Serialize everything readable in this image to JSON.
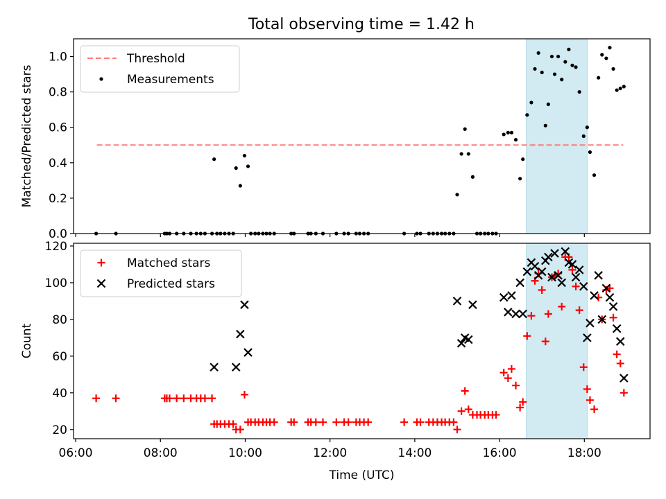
{
  "title": "Total observing time = 1.42 h",
  "colors": {
    "threshold": "#ff7b7b",
    "measurements": "#000000",
    "matched": "#ff0000",
    "predicted": "#000000",
    "shade": "#add8e6"
  },
  "chart_data": [
    {
      "type": "scatter",
      "ylabel": "Matched/Predicted stars",
      "xlim_hours": [
        5.95,
        19.55
      ],
      "ylim": [
        0,
        1.1
      ],
      "yticks": [
        0.0,
        0.2,
        0.4,
        0.6,
        0.8,
        1.0
      ],
      "ytick_labels": [
        "0.0",
        "0.2",
        "0.4",
        "0.6",
        "0.8",
        "1.0"
      ],
      "legend": {
        "position": "top-left",
        "entries": [
          "Threshold",
          "Measurements"
        ]
      },
      "threshold": {
        "name": "Threshold",
        "value": 0.5,
        "x_range": [
          "06:30",
          "18:55"
        ]
      },
      "shaded_interval": [
        "16:38",
        "18:04"
      ],
      "series": [
        {
          "name": "Measurements",
          "marker": "dot",
          "points": [
            [
              "06:29",
              0.0
            ],
            [
              "06:57",
              0.0
            ],
            [
              "08:06",
              0.0
            ],
            [
              "08:09",
              0.0
            ],
            [
              "08:13",
              0.0
            ],
            [
              "08:23",
              0.0
            ],
            [
              "08:33",
              0.0
            ],
            [
              "08:43",
              0.0
            ],
            [
              "08:51",
              0.0
            ],
            [
              "08:57",
              0.0
            ],
            [
              "09:03",
              0.0
            ],
            [
              "09:13",
              0.0
            ],
            [
              "09:16",
              0.42
            ],
            [
              "09:20",
              0.0
            ],
            [
              "09:25",
              0.0
            ],
            [
              "09:31",
              0.0
            ],
            [
              "09:37",
              0.0
            ],
            [
              "09:43",
              0.0
            ],
            [
              "09:47",
              0.37
            ],
            [
              "09:53",
              0.27
            ],
            [
              "09:59",
              0.44
            ],
            [
              "10:04",
              0.38
            ],
            [
              "10:08",
              0.0
            ],
            [
              "10:14",
              0.0
            ],
            [
              "10:19",
              0.0
            ],
            [
              "10:25",
              0.0
            ],
            [
              "10:30",
              0.0
            ],
            [
              "10:35",
              0.0
            ],
            [
              "10:41",
              0.0
            ],
            [
              "11:05",
              0.0
            ],
            [
              "11:09",
              0.0
            ],
            [
              "11:29",
              0.0
            ],
            [
              "11:33",
              0.0
            ],
            [
              "11:40",
              0.0
            ],
            [
              "11:50",
              0.0
            ],
            [
              "12:09",
              0.0
            ],
            [
              "12:20",
              0.0
            ],
            [
              "12:26",
              0.0
            ],
            [
              "12:37",
              0.0
            ],
            [
              "12:42",
              0.0
            ],
            [
              "12:48",
              0.0
            ],
            [
              "12:54",
              0.0
            ],
            [
              "13:45",
              0.0
            ],
            [
              "14:03",
              0.0
            ],
            [
              "14:08",
              0.0
            ],
            [
              "14:20",
              0.0
            ],
            [
              "14:26",
              0.0
            ],
            [
              "14:32",
              0.0
            ],
            [
              "14:38",
              0.0
            ],
            [
              "14:43",
              0.0
            ],
            [
              "14:49",
              0.0
            ],
            [
              "14:55",
              0.0
            ],
            [
              "15:00",
              0.22
            ],
            [
              "15:06",
              0.45
            ],
            [
              "15:11",
              0.59
            ],
            [
              "15:16",
              0.45
            ],
            [
              "15:22",
              0.32
            ],
            [
              "15:28",
              0.0
            ],
            [
              "15:33",
              0.0
            ],
            [
              "15:39",
              0.0
            ],
            [
              "15:44",
              0.0
            ],
            [
              "15:50",
              0.0
            ],
            [
              "15:55",
              0.0
            ],
            [
              "16:06",
              0.56
            ],
            [
              "16:12",
              0.57
            ],
            [
              "16:17",
              0.57
            ],
            [
              "16:23",
              0.53
            ],
            [
              "16:29",
              0.31
            ],
            [
              "16:33",
              0.42
            ],
            [
              "16:39",
              0.67
            ],
            [
              "16:45",
              0.74
            ],
            [
              "16:50",
              0.93
            ],
            [
              "16:55",
              1.02
            ],
            [
              "17:00",
              0.91
            ],
            [
              "17:05",
              0.61
            ],
            [
              "17:09",
              0.73
            ],
            [
              "17:14",
              1.0
            ],
            [
              "17:18",
              0.9
            ],
            [
              "17:23",
              1.0
            ],
            [
              "17:28",
              0.87
            ],
            [
              "17:33",
              0.97
            ],
            [
              "17:38",
              1.04
            ],
            [
              "17:43",
              0.95
            ],
            [
              "17:48",
              0.94
            ],
            [
              "17:53",
              0.8
            ],
            [
              "17:59",
              0.55
            ],
            [
              "18:04",
              0.6
            ],
            [
              "18:08",
              0.46
            ],
            [
              "18:14",
              0.33
            ],
            [
              "18:20",
              0.88
            ],
            [
              "18:25",
              1.01
            ],
            [
              "18:31",
              0.99
            ],
            [
              "18:36",
              1.05
            ],
            [
              "18:41",
              0.93
            ],
            [
              "18:46",
              0.81
            ],
            [
              "18:51",
              0.82
            ],
            [
              "18:56",
              0.83
            ]
          ]
        }
      ]
    },
    {
      "type": "scatter",
      "xlabel": "Time (UTC)",
      "ylabel": "Count",
      "xlim_hours": [
        5.95,
        19.55
      ],
      "ylim": [
        15,
        121.5
      ],
      "yticks": [
        20,
        40,
        60,
        80,
        100,
        120
      ],
      "ytick_labels": [
        "20",
        "40",
        "60",
        "80",
        "100",
        "120"
      ],
      "xticks": [
        "06:00",
        "08:00",
        "10:00",
        "12:00",
        "14:00",
        "16:00",
        "18:00"
      ],
      "legend": {
        "position": "top-left",
        "entries": [
          "Matched stars",
          "Predicted stars"
        ]
      },
      "shaded_interval": [
        "16:38",
        "18:04"
      ],
      "series": [
        {
          "name": "Matched stars",
          "marker": "plus",
          "points": [
            [
              "06:29",
              37
            ],
            [
              "06:57",
              37
            ],
            [
              "08:06",
              37
            ],
            [
              "08:09",
              37
            ],
            [
              "08:13",
              37
            ],
            [
              "08:23",
              37
            ],
            [
              "08:33",
              37
            ],
            [
              "08:43",
              37
            ],
            [
              "08:51",
              37
            ],
            [
              "08:57",
              37
            ],
            [
              "09:03",
              37
            ],
            [
              "09:13",
              37
            ],
            [
              "09:16",
              23
            ],
            [
              "09:20",
              23
            ],
            [
              "09:25",
              23
            ],
            [
              "09:31",
              23
            ],
            [
              "09:37",
              23
            ],
            [
              "09:43",
              23
            ],
            [
              "09:47",
              20
            ],
            [
              "09:53",
              20
            ],
            [
              "09:59",
              39
            ],
            [
              "10:04",
              24
            ],
            [
              "10:08",
              24
            ],
            [
              "10:14",
              24
            ],
            [
              "10:19",
              24
            ],
            [
              "10:25",
              24
            ],
            [
              "10:30",
              24
            ],
            [
              "10:35",
              24
            ],
            [
              "10:41",
              24
            ],
            [
              "11:05",
              24
            ],
            [
              "11:09",
              24
            ],
            [
              "11:29",
              24
            ],
            [
              "11:33",
              24
            ],
            [
              "11:40",
              24
            ],
            [
              "11:50",
              24
            ],
            [
              "12:09",
              24
            ],
            [
              "12:20",
              24
            ],
            [
              "12:26",
              24
            ],
            [
              "12:37",
              24
            ],
            [
              "12:42",
              24
            ],
            [
              "12:48",
              24
            ],
            [
              "12:54",
              24
            ],
            [
              "13:45",
              24
            ],
            [
              "14:03",
              24
            ],
            [
              "14:08",
              24
            ],
            [
              "14:20",
              24
            ],
            [
              "14:26",
              24
            ],
            [
              "14:32",
              24
            ],
            [
              "14:38",
              24
            ],
            [
              "14:43",
              24
            ],
            [
              "14:49",
              24
            ],
            [
              "14:55",
              24
            ],
            [
              "15:00",
              20
            ],
            [
              "15:06",
              30
            ],
            [
              "15:11",
              41
            ],
            [
              "15:16",
              31
            ],
            [
              "15:22",
              28
            ],
            [
              "15:28",
              28
            ],
            [
              "15:33",
              28
            ],
            [
              "15:39",
              28
            ],
            [
              "15:44",
              28
            ],
            [
              "15:50",
              28
            ],
            [
              "15:55",
              28
            ],
            [
              "16:06",
              51
            ],
            [
              "16:12",
              48
            ],
            [
              "16:17",
              53
            ],
            [
              "16:23",
              44
            ],
            [
              "16:29",
              32
            ],
            [
              "16:33",
              35
            ],
            [
              "16:39",
              71
            ],
            [
              "16:45",
              82
            ],
            [
              "16:50",
              101
            ],
            [
              "16:55",
              105
            ],
            [
              "17:00",
              96
            ],
            [
              "17:05",
              68
            ],
            [
              "17:09",
              83
            ],
            [
              "17:14",
              103
            ],
            [
              "17:18",
              104
            ],
            [
              "17:23",
              105
            ],
            [
              "17:28",
              87
            ],
            [
              "17:33",
              114
            ],
            [
              "17:38",
              114
            ],
            [
              "17:43",
              107
            ],
            [
              "17:48",
              98
            ],
            [
              "17:53",
              85
            ],
            [
              "17:59",
              54
            ],
            [
              "18:04",
              42
            ],
            [
              "18:08",
              36
            ],
            [
              "18:14",
              31
            ],
            [
              "18:20",
              92
            ],
            [
              "18:25",
              80
            ],
            [
              "18:31",
              96
            ],
            [
              "18:36",
              97
            ],
            [
              "18:41",
              81
            ],
            [
              "18:46",
              61
            ],
            [
              "18:51",
              56
            ],
            [
              "18:56",
              40
            ]
          ]
        },
        {
          "name": "Predicted stars",
          "marker": "x",
          "points": [
            [
              "09:16",
              54
            ],
            [
              "09:47",
              54
            ],
            [
              "09:53",
              72
            ],
            [
              "09:59",
              88
            ],
            [
              "10:04",
              62
            ],
            [
              "15:00",
              90
            ],
            [
              "15:06",
              67
            ],
            [
              "15:11",
              70
            ],
            [
              "15:16",
              69
            ],
            [
              "15:22",
              88
            ],
            [
              "16:06",
              92
            ],
            [
              "16:12",
              84
            ],
            [
              "16:17",
              93
            ],
            [
              "16:23",
              83
            ],
            [
              "16:29",
              100
            ],
            [
              "16:33",
              83
            ],
            [
              "16:39",
              106
            ],
            [
              "16:45",
              111
            ],
            [
              "16:50",
              109
            ],
            [
              "16:55",
              104
            ],
            [
              "17:00",
              106
            ],
            [
              "17:05",
              112
            ],
            [
              "17:09",
              114
            ],
            [
              "17:14",
              103
            ],
            [
              "17:18",
              116
            ],
            [
              "17:23",
              104
            ],
            [
              "17:28",
              100
            ],
            [
              "17:33",
              117
            ],
            [
              "17:38",
              111
            ],
            [
              "17:43",
              110
            ],
            [
              "17:48",
              103
            ],
            [
              "17:53",
              107
            ],
            [
              "17:59",
              98
            ],
            [
              "18:04",
              70
            ],
            [
              "18:08",
              78
            ],
            [
              "18:14",
              93
            ],
            [
              "18:20",
              104
            ],
            [
              "18:25",
              80
            ],
            [
              "18:31",
              97
            ],
            [
              "18:36",
              92
            ],
            [
              "18:41",
              87
            ],
            [
              "18:46",
              75
            ],
            [
              "18:51",
              68
            ],
            [
              "18:56",
              48
            ]
          ]
        }
      ]
    }
  ]
}
